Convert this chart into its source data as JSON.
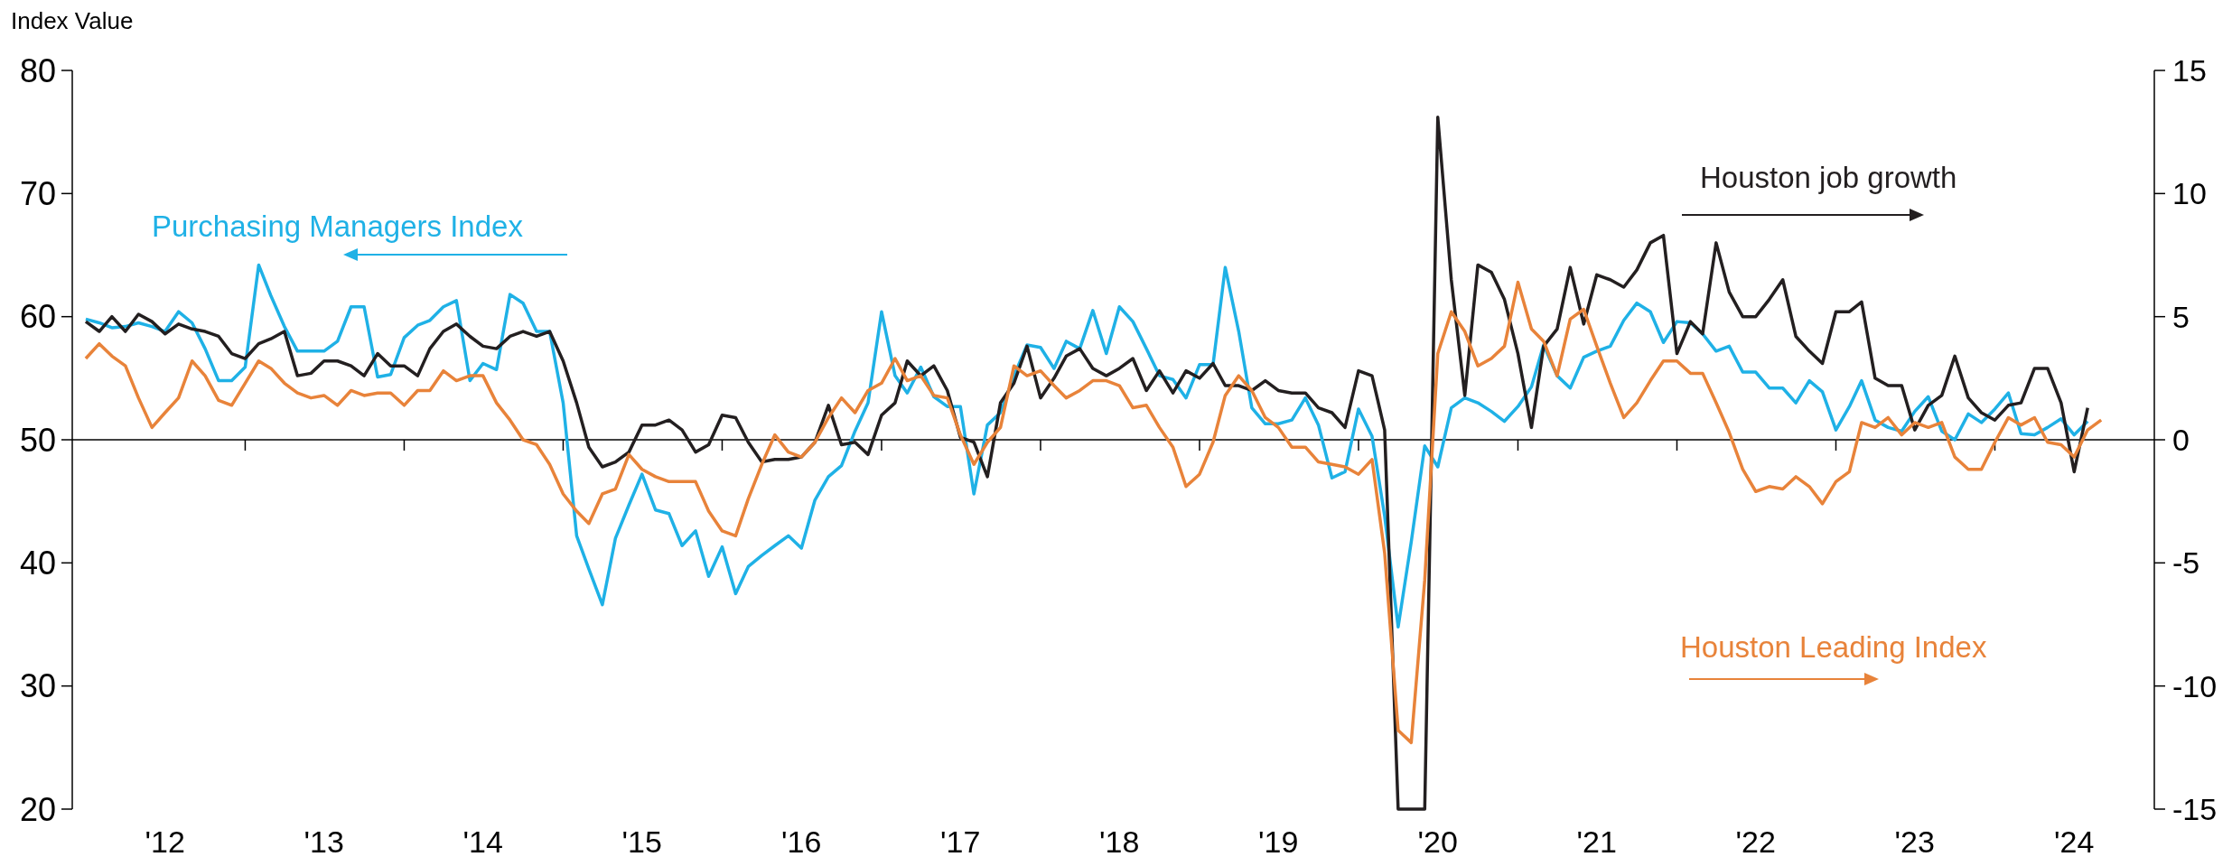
{
  "chart_data": {
    "type": "line",
    "ylabel": "Index Value",
    "x": [
      "2012-01",
      "2012-02",
      "2012-03",
      "2012-04",
      "2012-05",
      "2012-06",
      "2012-07",
      "2012-08",
      "2012-09",
      "2012-10",
      "2012-11",
      "2012-12",
      "2013-01",
      "2013-02",
      "2013-03",
      "2013-04",
      "2013-05",
      "2013-06",
      "2013-07",
      "2013-08",
      "2013-09",
      "2013-10",
      "2013-11",
      "2013-12",
      "2014-01",
      "2014-02",
      "2014-03",
      "2014-04",
      "2014-05",
      "2014-06",
      "2014-07",
      "2014-08",
      "2014-09",
      "2014-10",
      "2014-11",
      "2014-12",
      "2015-01",
      "2015-02",
      "2015-03",
      "2015-04",
      "2015-05",
      "2015-06",
      "2015-07",
      "2015-08",
      "2015-09",
      "2015-10",
      "2015-11",
      "2015-12",
      "2016-01",
      "2016-02",
      "2016-03",
      "2016-04",
      "2016-05",
      "2016-06",
      "2016-07",
      "2016-08",
      "2016-09",
      "2016-10",
      "2016-11",
      "2016-12",
      "2017-01",
      "2017-02",
      "2017-03",
      "2017-04",
      "2017-05",
      "2017-06",
      "2017-07",
      "2017-08",
      "2017-09",
      "2017-10",
      "2017-11",
      "2017-12",
      "2018-01",
      "2018-02",
      "2018-03",
      "2018-04",
      "2018-05",
      "2018-06",
      "2018-07",
      "2018-08",
      "2018-09",
      "2018-10",
      "2018-11",
      "2018-12",
      "2019-01",
      "2019-02",
      "2019-03",
      "2019-04",
      "2019-05",
      "2019-06",
      "2019-07",
      "2019-08",
      "2019-09",
      "2019-10",
      "2019-11",
      "2019-12",
      "2020-01",
      "2020-02",
      "2020-03",
      "2020-04",
      "2020-05",
      "2020-06",
      "2020-07",
      "2020-08",
      "2020-09",
      "2020-10",
      "2020-11",
      "2020-12",
      "2021-01",
      "2021-02",
      "2021-03",
      "2021-04",
      "2021-05",
      "2021-06",
      "2021-07",
      "2021-08",
      "2021-09",
      "2021-10",
      "2021-11",
      "2021-12",
      "2022-01",
      "2022-02",
      "2022-03",
      "2022-04",
      "2022-05",
      "2022-06",
      "2022-07",
      "2022-08",
      "2022-09",
      "2022-10",
      "2022-11",
      "2022-12",
      "2023-01",
      "2023-02",
      "2023-03",
      "2023-04",
      "2023-05",
      "2023-06",
      "2023-07",
      "2023-08",
      "2023-09",
      "2023-10",
      "2023-11",
      "2023-12",
      "2024-01",
      "2024-02",
      "2024-03",
      "2024-04",
      "2024-05",
      "2024-06",
      "2024-07",
      "2024-08",
      "2024-09"
    ],
    "series": [
      {
        "name": "Purchasing Managers Index",
        "color": "#1fb1e6",
        "axis": "y",
        "values": [
          59.8,
          59.5,
          59.1,
          59.2,
          59.5,
          59.2,
          58.8,
          60.4,
          59.5,
          57.4,
          54.8,
          54.8,
          55.9,
          64.2,
          61.7,
          59.2,
          57.2,
          57.2,
          57.2,
          58,
          60.8,
          60.8,
          55.1,
          55.3,
          58.3,
          59.3,
          59.7,
          60.8,
          61.3,
          54.8,
          56.2,
          55.7,
          61.8,
          61.1,
          58.8,
          58.8,
          53,
          42.2,
          39.5,
          36.6,
          42,
          44.7,
          47.2,
          44.3,
          44,
          41.4,
          42.6,
          38.9,
          41.3,
          37.5,
          39.7,
          40.6,
          41.4,
          42.2,
          41.2,
          45.1,
          47,
          47.9,
          50.7,
          53,
          60.4,
          55.2,
          53.8,
          55.9,
          53.5,
          52.7,
          52.7,
          45.6,
          51.2,
          52.2,
          55.2,
          57.7,
          57.5,
          55.8,
          58,
          57.4,
          60.5,
          57,
          60.8,
          59.6,
          57.4,
          55.2,
          54.9,
          53.4,
          56.1,
          56.1,
          64,
          58.8,
          52.6,
          51.3,
          51.3,
          51.6,
          53.4,
          51.2,
          46.9,
          47.4,
          52.5,
          50.3,
          43.8,
          34.8,
          41.7,
          49.5,
          47.8,
          52.6,
          53.4,
          53,
          52.3,
          51.5,
          52.7,
          54.3,
          57.7,
          55.2,
          54.2,
          56.7,
          57.2,
          57.6,
          59.7,
          61.1,
          60.4,
          57.9,
          59.6,
          59.5,
          58.6,
          57.2,
          57.6,
          55.5,
          55.5,
          54.2,
          54.2,
          53,
          54.8,
          53.9,
          50.8,
          52.7,
          54.8,
          51.6,
          51,
          50.7,
          52.3,
          53.5,
          50.7,
          50,
          52.1,
          51.4,
          52.5,
          53.8,
          50.5,
          50.4,
          51,
          51.7,
          50.4,
          51.5,
          null
        ]
      },
      {
        "name": "Houston job growth",
        "color": "#231f20",
        "axis": "y2",
        "values": [
          4.8,
          4.4,
          5.0,
          4.4,
          5.1,
          4.8,
          4.3,
          4.7,
          4.5,
          4.4,
          4.2,
          3.5,
          3.3,
          3.9,
          4.1,
          4.4,
          2.6,
          2.7,
          3.2,
          3.2,
          3.0,
          2.6,
          3.5,
          3.0,
          3.0,
          2.6,
          3.7,
          4.4,
          4.7,
          4.2,
          3.8,
          3.7,
          4.2,
          4.4,
          4.2,
          4.4,
          3.2,
          1.5,
          -0.3,
          -1.1,
          -0.9,
          -0.5,
          0.6,
          0.6,
          0.8,
          0.4,
          -0.5,
          -0.2,
          1.0,
          0.9,
          -0.1,
          -0.9,
          -0.8,
          -0.8,
          -0.7,
          -0.1,
          1.4,
          -0.2,
          -0.1,
          -0.6,
          1.0,
          1.5,
          3.2,
          2.6,
          3.0,
          2.0,
          0.1,
          -0.1,
          -1.5,
          1.5,
          2.3,
          3.8,
          1.7,
          2.5,
          3.4,
          3.7,
          2.9,
          2.6,
          2.9,
          3.3,
          2.0,
          2.8,
          1.9,
          2.8,
          2.5,
          3.1,
          2.2,
          2.2,
          2.0,
          2.4,
          2.0,
          1.9,
          1.9,
          1.3,
          1.1,
          0.5,
          2.8,
          2.6,
          0.4,
          -15,
          -15,
          -15,
          13.1,
          6.5,
          1.8,
          7.1,
          6.8,
          5.7,
          3.5,
          0.5,
          3.8,
          4.5,
          7.0,
          4.7,
          6.7,
          6.5,
          6.2,
          6.9,
          8.0,
          8.3,
          3.5,
          4.8,
          4.3,
          8.0,
          6.0,
          5.0,
          5.0,
          5.7,
          6.5,
          4.2,
          3.6,
          3.1,
          5.2,
          5.2,
          5.6,
          2.5,
          2.2,
          2.2,
          0.4,
          1.4,
          1.8,
          3.4,
          1.7,
          1.1,
          0.8,
          1.4,
          1.5,
          2.9,
          2.9,
          1.5,
          -1.3,
          1.3,
          null
        ]
      },
      {
        "name": "Houston Leading Index",
        "color": "#e8833a",
        "axis": "y2",
        "values": [
          3.3,
          3.9,
          3.4,
          3.0,
          1.7,
          0.5,
          1.1,
          1.7,
          3.2,
          2.6,
          1.6,
          1.4,
          2.3,
          3.2,
          2.9,
          2.3,
          1.9,
          1.7,
          1.8,
          1.4,
          2.0,
          1.8,
          1.9,
          1.9,
          1.4,
          2.0,
          2.0,
          2.8,
          2.4,
          2.6,
          2.6,
          1.5,
          0.8,
          0,
          -0.2,
          -1.0,
          -2.2,
          -2.9,
          -3.4,
          -2.2,
          -2.0,
          -0.6,
          -1.2,
          -1.5,
          -1.7,
          -1.7,
          -1.7,
          -2.9,
          -3.7,
          -3.9,
          -2.4,
          -1.0,
          0.2,
          -0.5,
          -0.7,
          -0.1,
          0.9,
          1.7,
          1.1,
          2.0,
          2.3,
          3.3,
          2.4,
          2.6,
          1.8,
          1.7,
          0.2,
          -1.0,
          -0.1,
          0.5,
          3.0,
          2.6,
          2.8,
          2.2,
          1.7,
          2.0,
          2.4,
          2.4,
          2.2,
          1.3,
          1.4,
          0.5,
          -0.3,
          -1.9,
          -1.4,
          -0.1,
          1.8,
          2.6,
          2.0,
          0.9,
          0.5,
          -0.3,
          -0.3,
          -0.9,
          -1.0,
          -1.1,
          -1.4,
          -0.8,
          -4.6,
          -11.8,
          -12.3,
          -5.7,
          3.5,
          5.2,
          4.4,
          3.0,
          3.3,
          3.8,
          6.4,
          4.5,
          4.0,
          2.6,
          4.9,
          5.3,
          3.8,
          2.3,
          0.9,
          1.5,
          2.4,
          3.2,
          3.2,
          2.7,
          2.7,
          1.5,
          0.3,
          -1.2,
          -2.1,
          -1.9,
          -2.0,
          -1.5,
          -1.9,
          -2.6,
          -1.7,
          -1.3,
          0.7,
          0.5,
          0.9,
          0.2,
          0.7,
          0.5,
          0.7,
          -0.7,
          -1.2,
          -1.2,
          -0.1,
          0.9,
          0.6,
          0.9,
          -0.1,
          -0.2,
          -0.7,
          0.4,
          0.8
        ]
      }
    ],
    "xlim": [
      "2011-12",
      "2025-01"
    ],
    "xticks": [
      {
        "value": "2012-07",
        "label": "'12"
      },
      {
        "value": "2013-07",
        "label": "'13"
      },
      {
        "value": "2014-07",
        "label": "'14"
      },
      {
        "value": "2015-07",
        "label": "'15"
      },
      {
        "value": "2016-07",
        "label": "'16"
      },
      {
        "value": "2017-07",
        "label": "'17"
      },
      {
        "value": "2018-07",
        "label": "'18"
      },
      {
        "value": "2019-07",
        "label": "'19"
      },
      {
        "value": "2020-07",
        "label": "'20"
      },
      {
        "value": "2021-07",
        "label": "'21"
      },
      {
        "value": "2022-07",
        "label": "'22"
      },
      {
        "value": "2023-07",
        "label": "'23"
      },
      {
        "value": "2024-07",
        "label": "'24"
      },
      {
        "value": "2013-01",
        "label": null
      },
      {
        "value": "2014-01",
        "label": null
      },
      {
        "value": "2015-01",
        "label": null
      },
      {
        "value": "2016-01",
        "label": null
      },
      {
        "value": "2017-01",
        "label": null
      },
      {
        "value": "2018-01",
        "label": null
      },
      {
        "value": "2019-01",
        "label": null
      },
      {
        "value": "2020-01",
        "label": null
      },
      {
        "value": "2021-01",
        "label": null
      },
      {
        "value": "2022-01",
        "label": null
      },
      {
        "value": "2023-01",
        "label": null
      },
      {
        "value": "2024-01",
        "label": null
      }
    ],
    "ylim": [
      20,
      80
    ],
    "yticks": [
      20,
      30,
      40,
      50,
      60,
      70,
      80
    ],
    "y2lim": [
      -15,
      15
    ],
    "y2ticks": [
      -15,
      -10,
      -5,
      0,
      5,
      10,
      15
    ],
    "ref_lines": [
      {
        "axis": "y2",
        "value": 0
      }
    ],
    "grid": false,
    "line_style": "solid"
  }
}
